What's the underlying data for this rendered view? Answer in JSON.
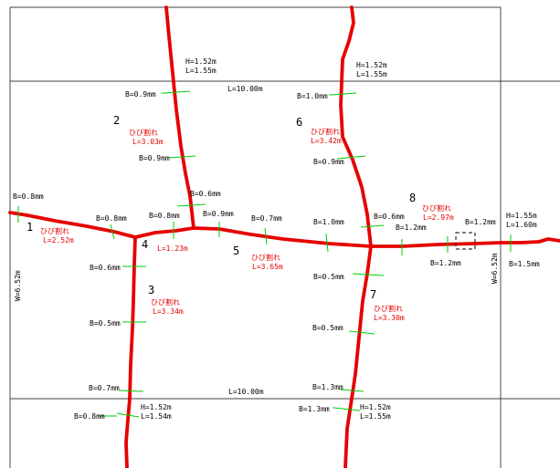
{
  "texts": {
    "h1": "H=1.52m",
    "l1": "L=1.55m",
    "h2": "H=1.52m",
    "l2": "L=1.55m",
    "ltop": "L=10.00m",
    "b_09a": "B=0.9mm",
    "b_10a": "B=1.0mm",
    "n2": "2",
    "c2": "ひび割れ",
    "c2l": "L=3.03m",
    "n6": "6",
    "c6": "ひび割れ",
    "c6l": "L=3.42m",
    "b_09b": "B=0.9mm",
    "b_09c": "B=0.9mm",
    "b_06a": "B=0.6mm",
    "b_08left": "B=0.8mm",
    "b_08b": "B=0.8mm",
    "b_08c": "B=0.8mm",
    "b_09d": "B=0.9mm",
    "b_07a": "B=0.7mm",
    "b_10b": "B=1.0mm",
    "b_06b": "B=0.6mm",
    "n8": "8",
    "c8": "ひび割れ",
    "c8l": "L=2.97m",
    "b_12a": "B=1.2mm",
    "b_12b": "B=1.2mm",
    "h3": "H=1.55m",
    "l3": "L=1.60m",
    "n1": "1",
    "c1": "ひび割れ",
    "c1l": "L=2.52m",
    "n4": "4",
    "c4l": "L=1.23m",
    "n5": "5",
    "c5": "ひび割れ",
    "c5l": "L=3.65m",
    "b_12c": "B=1.2mm",
    "w1": "W=6.52m",
    "b_15": "B=1.5mm",
    "b_06c": "B=0.6mm",
    "b_05a": "B=0.5mm",
    "w2": "W=6.52m",
    "n3": "3",
    "c3": "ひび割れ",
    "c3l": "L=3.34m",
    "n7": "7",
    "c7": "ひび割れ",
    "c7l": "L=3.30m",
    "b_05b": "B=0.5mm",
    "b_05c": "B=0.5mm",
    "b_07b": "B=0.7mm",
    "lbot": "L=10.00m",
    "b_13a": "B=1.3mm",
    "b_08d": "B=0.8mm",
    "h4": "H=1.52m",
    "l4": "L=1.54m",
    "b_13b": "B=1.3mm",
    "h5": "H=1.52m",
    "l5": "L=1.55m"
  }
}
